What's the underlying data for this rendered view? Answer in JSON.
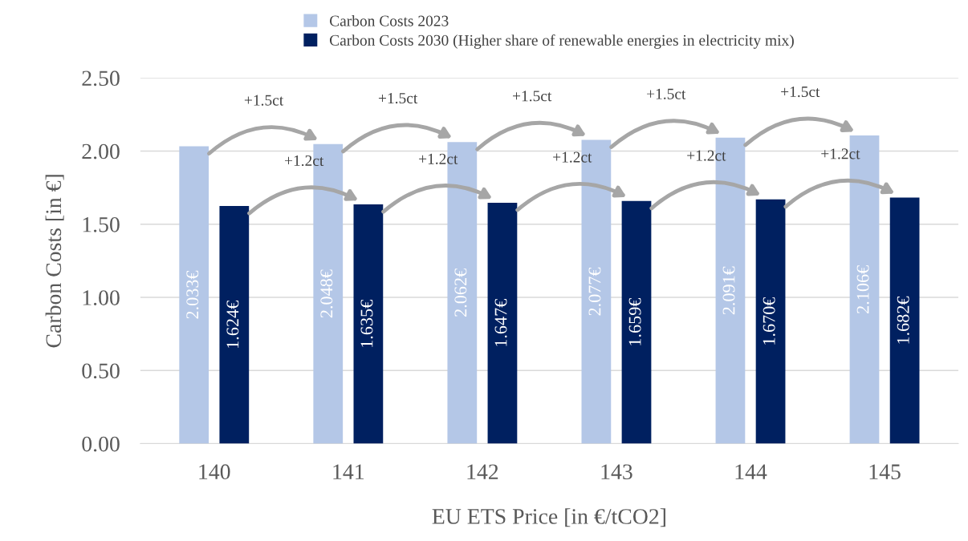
{
  "chart_data": {
    "type": "bar",
    "xlabel": "EU ETS Price [in €/tCO2]",
    "ylabel": "Carbon Costs [in €]",
    "categories": [
      "140",
      "141",
      "142",
      "143",
      "144",
      "145"
    ],
    "series": [
      {
        "name": "Carbon Costs 2023",
        "color": "#b4c7e7",
        "values": [
          2.033,
          2.048,
          2.062,
          2.077,
          2.091,
          2.106
        ],
        "value_labels": [
          "2.033€",
          "2.048€",
          "2.062€",
          "2.077€",
          "2.091€",
          "2.106€"
        ]
      },
      {
        "name": "Carbon Costs 2030 (Higher share of renewable energies in electricity mix)",
        "color": "#002060",
        "values": [
          1.624,
          1.635,
          1.647,
          1.659,
          1.67,
          1.682
        ],
        "value_labels": [
          "1.624€",
          "1.635€",
          "1.647€",
          "1.659€",
          "1.670€",
          "1.682€"
        ]
      }
    ],
    "ylim": [
      0,
      2.5
    ],
    "yticks": [
      {
        "value": 0,
        "label": "0.00"
      },
      {
        "value": 0.5,
        "label": "0.50"
      },
      {
        "value": 1,
        "label": "1.00"
      },
      {
        "value": 1.5,
        "label": "1.50"
      },
      {
        "value": 2,
        "label": "2.00"
      },
      {
        "value": 2.5,
        "label": "2.50"
      }
    ],
    "grid": "y",
    "legend": "top",
    "annotations": [
      "+1.5ct",
      "+1.5ct",
      "+1.5ct",
      "+1.5ct",
      "+1.5ct",
      "+1.2ct",
      "+1.2ct",
      "+1.2ct",
      "+1.2ct",
      "+1.2ct"
    ]
  }
}
